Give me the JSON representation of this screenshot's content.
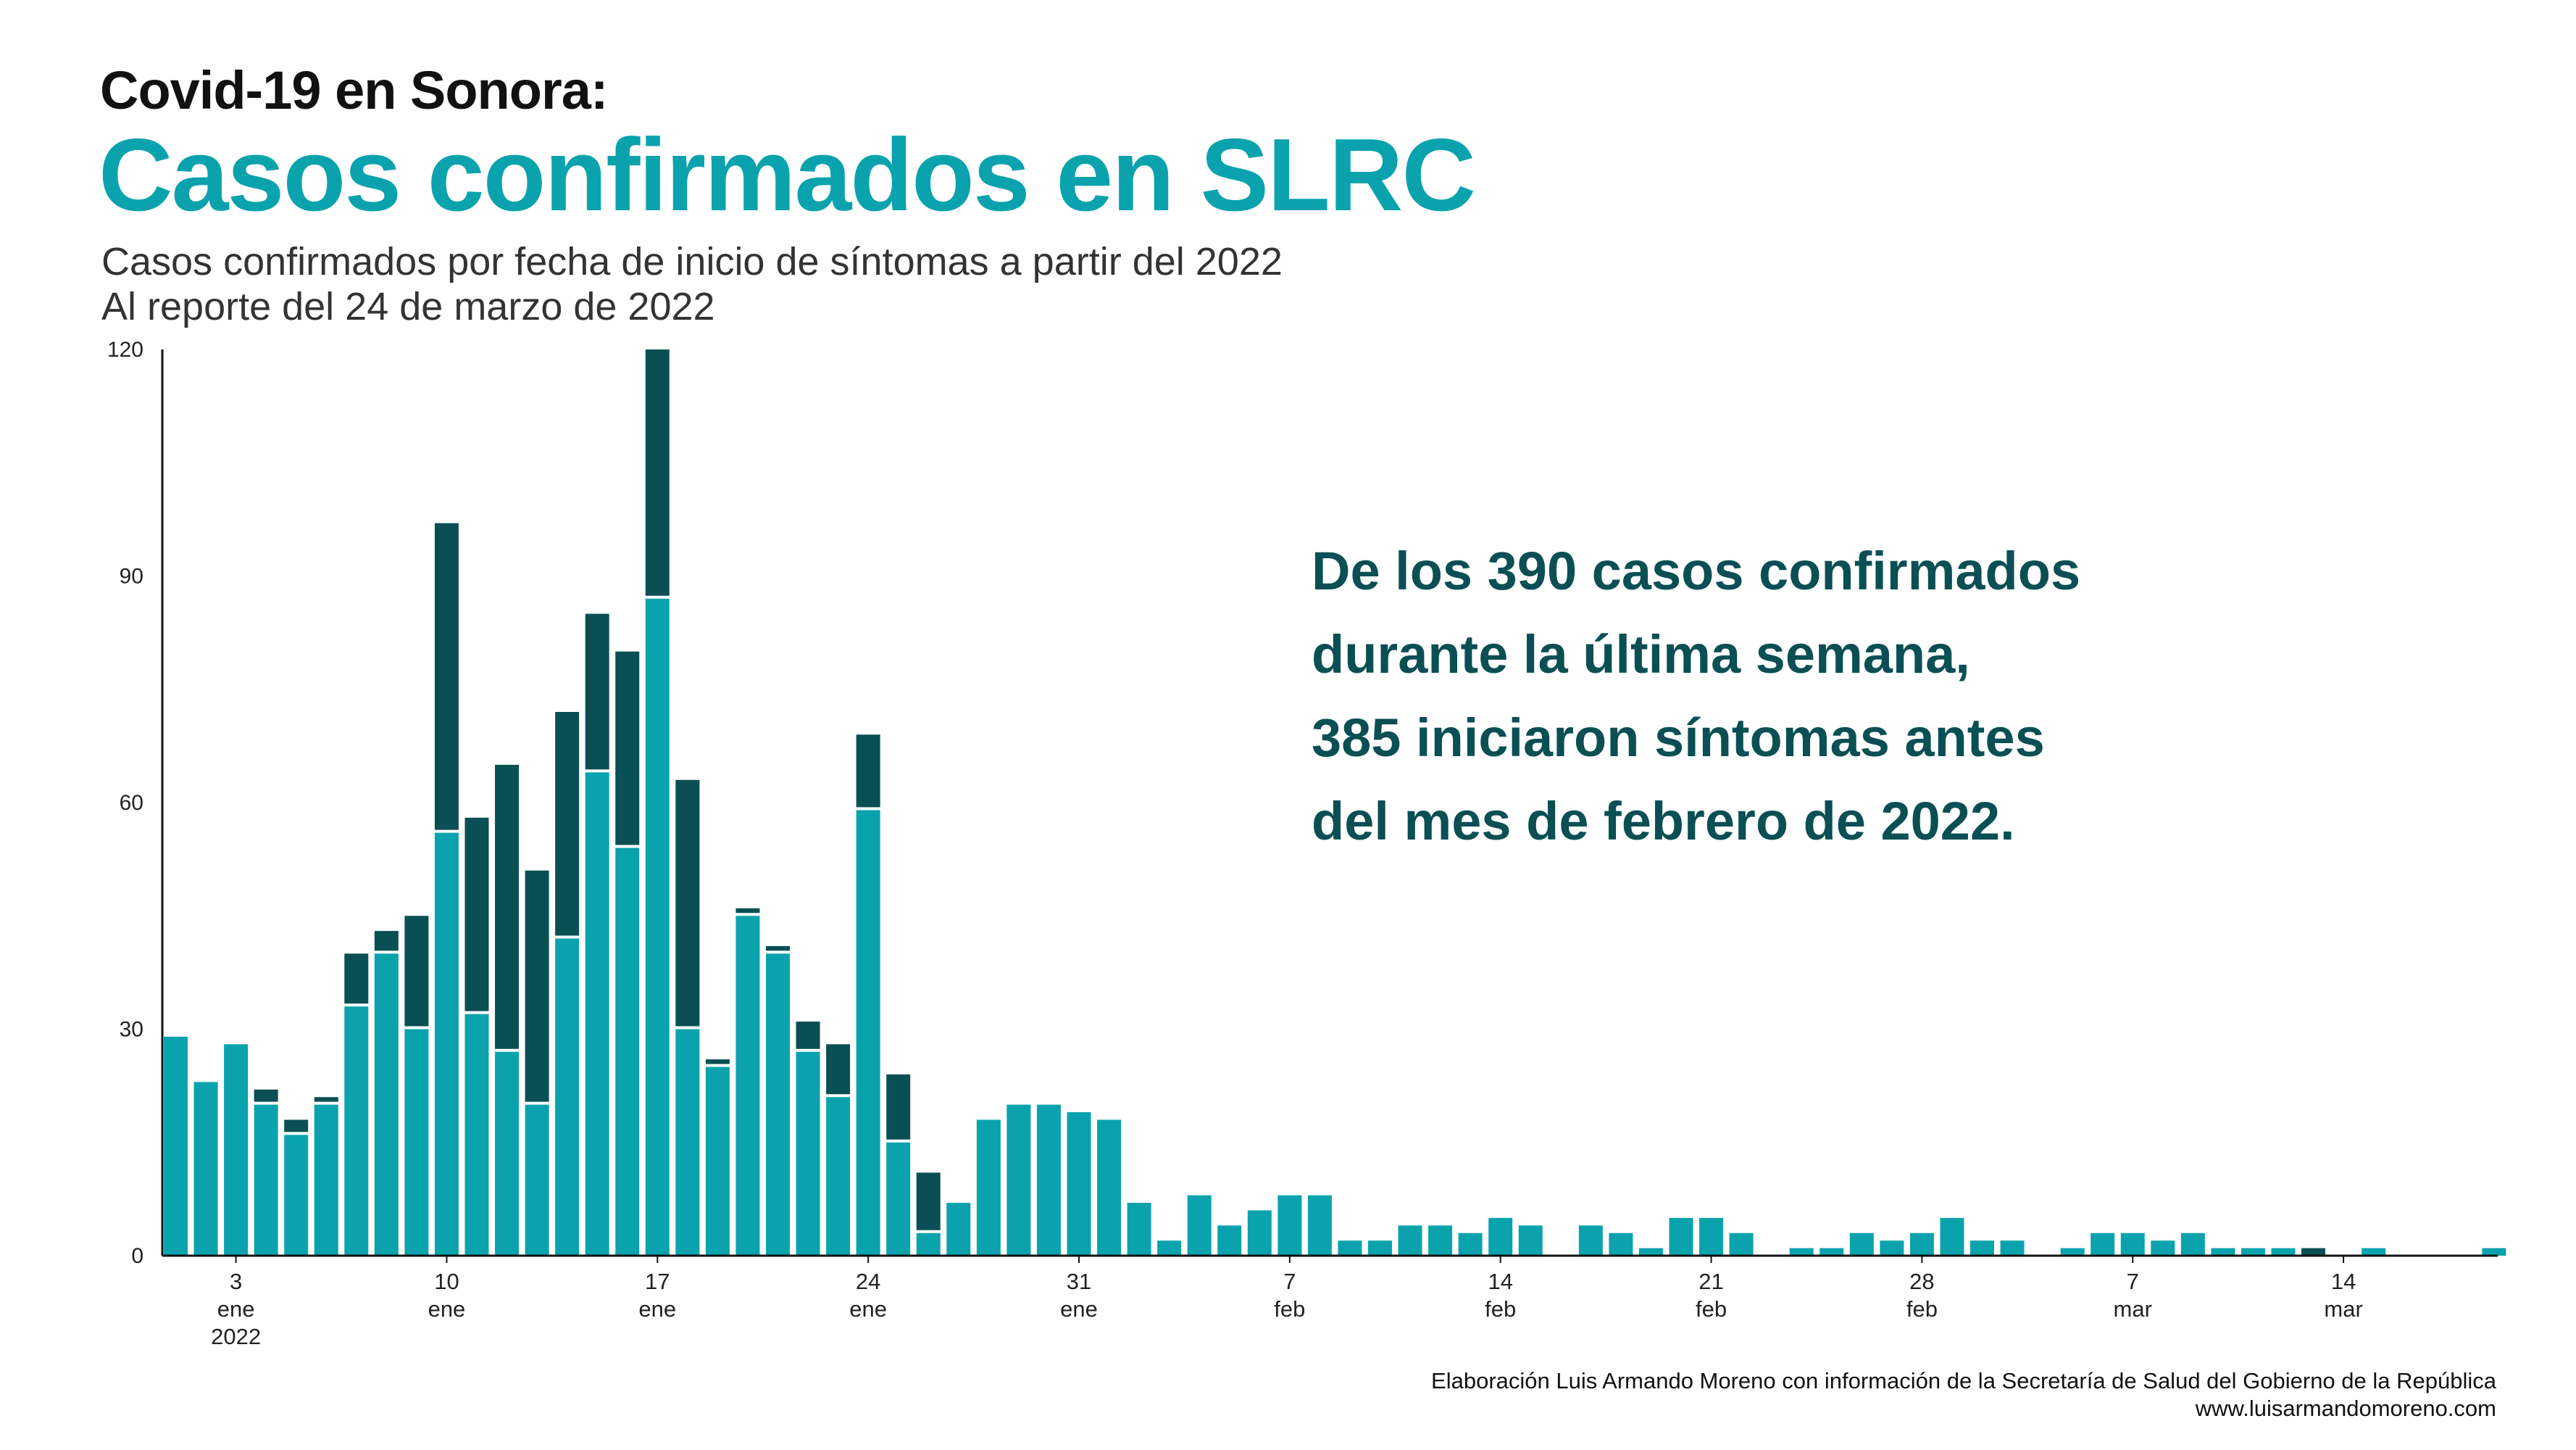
{
  "header": {
    "pretitle": "Covid-19 en Sonora:",
    "title": "Casos confirmados en SLRC",
    "subtitle_1": "Casos confirmados por fecha de inicio de síntomas a partir del 2022",
    "subtitle_2": "Al reporte del 24 de marzo de 2022"
  },
  "annotation": {
    "line_1": "De los 390 casos confirmados",
    "line_2": "durante la última semana,",
    "line_3": "385 iniciaron síntomas antes",
    "line_4": "del mes de febrero de 2022."
  },
  "footer": {
    "source": "Elaboración Luis Armando Moreno con información de la Secretaría de Salud del Gobierno de la República",
    "website": "www.luisarmandomoreno.com"
  },
  "colors": {
    "prior": "#0aa3ad",
    "last_week": "#0a4f54",
    "title": "#0aa3ad",
    "annotation": "#0a4f54"
  },
  "chart_data": {
    "type": "bar",
    "stacked": true,
    "x_start": "2022-01-01",
    "ylim": [
      0,
      120
    ],
    "yticks": [
      0,
      30,
      60,
      90,
      120
    ],
    "xticks": [
      {
        "date": "2022-01-03",
        "day": "3",
        "month": "ene",
        "year": "2022"
      },
      {
        "date": "2022-01-10",
        "day": "10",
        "month": "ene"
      },
      {
        "date": "2022-01-17",
        "day": "17",
        "month": "ene"
      },
      {
        "date": "2022-01-24",
        "day": "24",
        "month": "ene"
      },
      {
        "date": "2022-01-31",
        "day": "31",
        "month": "ene"
      },
      {
        "date": "2022-02-07",
        "day": "7",
        "month": "feb"
      },
      {
        "date": "2022-02-14",
        "day": "14",
        "month": "feb"
      },
      {
        "date": "2022-02-21",
        "day": "21",
        "month": "feb"
      },
      {
        "date": "2022-02-28",
        "day": "28",
        "month": "feb"
      },
      {
        "date": "2022-03-07",
        "day": "7",
        "month": "mar"
      },
      {
        "date": "2022-03-14",
        "day": "14",
        "month": "mar"
      }
    ],
    "series": [
      {
        "color": "#0aa3ad",
        "values": [
          29,
          23,
          28,
          20,
          16,
          20,
          33,
          40,
          30,
          56,
          32,
          27,
          20,
          42,
          64,
          54,
          87,
          30,
          25,
          45,
          40,
          27,
          21,
          59,
          15,
          3,
          7,
          18,
          20,
          20,
          19,
          18,
          7,
          2,
          8,
          4,
          6,
          8,
          8,
          2,
          2,
          4,
          4,
          3,
          5,
          4,
          0,
          4,
          3,
          1,
          5,
          5,
          3,
          0,
          1,
          1,
          3,
          2,
          3,
          5,
          2,
          2,
          0,
          1,
          3,
          3,
          2,
          3,
          1,
          1,
          1,
          0,
          0,
          1,
          0,
          0,
          0,
          1
        ]
      },
      {
        "color": "#0a4f54",
        "values": [
          0,
          0,
          0,
          2,
          2,
          1,
          7,
          3,
          15,
          41,
          26,
          38,
          31,
          30,
          21,
          26,
          33,
          33,
          1,
          1,
          1,
          4,
          7,
          10,
          9,
          8,
          0,
          0,
          0,
          0,
          0,
          0,
          0,
          0,
          0,
          0,
          0,
          0,
          0,
          0,
          0,
          0,
          0,
          0,
          0,
          0,
          0,
          0,
          0,
          0,
          0,
          0,
          0,
          0,
          0,
          0,
          0,
          0,
          0,
          0,
          0,
          0,
          0,
          0,
          0,
          0,
          0,
          0,
          0,
          0,
          0,
          1,
          0,
          0,
          0,
          0,
          0,
          0
        ]
      }
    ]
  }
}
